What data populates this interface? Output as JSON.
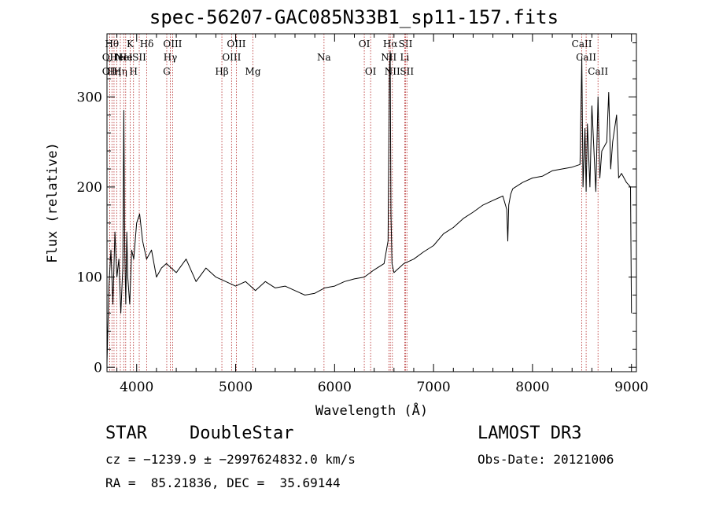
{
  "header": {
    "title": "spec-56207-GAC085N33B1_sp11-157.fits"
  },
  "info": {
    "class": "STAR",
    "subclass": "DoubleStar",
    "survey": "LAMOST DR3",
    "cz": "cz = −1239.9 ± −2997624832.0 km/s",
    "obs_date": "Obs-Date: 20121006",
    "coords": "RA =  85.21836, DEC =  35.69144"
  },
  "chart_data": {
    "type": "line",
    "title": "spec-56207-GAC085N33B1_sp11-157.fits",
    "xlabel": "Wavelength (Å)",
    "ylabel": "Flux (relative)",
    "xlim": [
      3700,
      9050
    ],
    "ylim": [
      -5,
      370
    ],
    "xticks": [
      4000,
      5000,
      6000,
      7000,
      8000,
      9000
    ],
    "yticks": [
      0,
      100,
      200,
      300
    ],
    "grid": false,
    "series": [
      {
        "color": "#000000",
        "x": [
          3700,
          3720,
          3740,
          3760,
          3780,
          3800,
          3820,
          3840,
          3860,
          3870,
          3880,
          3890,
          3900,
          3910,
          3930,
          3950,
          3970,
          4000,
          4030,
          4060,
          4100,
          4150,
          4200,
          4250,
          4300,
          4400,
          4500,
          4600,
          4700,
          4800,
          4900,
          5000,
          5100,
          5200,
          5300,
          5400,
          5500,
          5600,
          5700,
          5800,
          5900,
          6000,
          6100,
          6200,
          6300,
          6400,
          6500,
          6540,
          6555,
          6562,
          6570,
          6580,
          6600,
          6650,
          6700,
          6800,
          6900,
          7000,
          7100,
          7200,
          7300,
          7400,
          7500,
          7600,
          7700,
          7740,
          7750,
          7760,
          7780,
          7800,
          7900,
          8000,
          8100,
          8200,
          8300,
          8400,
          8480,
          8498,
          8510,
          8530,
          8542,
          8555,
          8580,
          8600,
          8640,
          8662,
          8680,
          8700,
          8750,
          8770,
          8790,
          8810,
          8850,
          8870,
          8900,
          8950,
          8990,
          9000
        ],
        "values": [
          5,
          90,
          130,
          70,
          150,
          100,
          120,
          60,
          110,
          285,
          130,
          70,
          150,
          100,
          70,
          130,
          120,
          160,
          170,
          140,
          120,
          130,
          100,
          110,
          115,
          105,
          120,
          95,
          110,
          100,
          95,
          90,
          95,
          85,
          95,
          88,
          90,
          85,
          80,
          82,
          88,
          90,
          95,
          98,
          100,
          108,
          115,
          140,
          330,
          350,
          170,
          115,
          105,
          110,
          115,
          120,
          128,
          135,
          148,
          155,
          165,
          172,
          180,
          185,
          190,
          175,
          140,
          180,
          192,
          198,
          205,
          210,
          212,
          218,
          220,
          222,
          225,
          345,
          200,
          265,
          195,
          270,
          200,
          290,
          195,
          300,
          210,
          240,
          250,
          305,
          220,
          250,
          280,
          210,
          215,
          205,
          200,
          60
        ]
      }
    ],
    "line_markers": [
      {
        "wave": 3727,
        "label": "OII",
        "row": 1
      },
      {
        "wave": 3727,
        "label": "OII",
        "row": 2
      },
      {
        "wave": 3750,
        "label": "Hθ",
        "row": 0
      },
      {
        "wave": 3771,
        "label": "Hη",
        "row": 2
      },
      {
        "wave": 3798,
        "label": "He",
        "row": 1
      },
      {
        "wave": 3835,
        "label": "Hη",
        "row": 2
      },
      {
        "wave": 3869,
        "label": "NeI",
        "row": 1
      },
      {
        "wave": 3889,
        "label": "He",
        "row": 1
      },
      {
        "wave": 3934,
        "label": "K",
        "row": 0
      },
      {
        "wave": 3968,
        "label": "H",
        "row": 2
      },
      {
        "wave": 4026,
        "label": "SII",
        "row": 1
      },
      {
        "wave": 4102,
        "label": "Hδ",
        "row": 0
      },
      {
        "wave": 4304,
        "label": "G",
        "row": 2
      },
      {
        "wave": 4340,
        "label": "Hγ",
        "row": 1
      },
      {
        "wave": 4363,
        "label": "OIII",
        "row": 0
      },
      {
        "wave": 4861,
        "label": "Hβ",
        "row": 2
      },
      {
        "wave": 4959,
        "label": "OIII",
        "row": 1
      },
      {
        "wave": 5007,
        "label": "OIII",
        "row": 0
      },
      {
        "wave": 5175,
        "label": "Mg",
        "row": 2
      },
      {
        "wave": 5893,
        "label": "Na",
        "row": 1
      },
      {
        "wave": 6300,
        "label": "OI",
        "row": 0
      },
      {
        "wave": 6364,
        "label": "OI",
        "row": 2
      },
      {
        "wave": 6548,
        "label": "NII",
        "row": 1
      },
      {
        "wave": 6563,
        "label": "Hα",
        "row": 0
      },
      {
        "wave": 6584,
        "label": "NII",
        "row": 2
      },
      {
        "wave": 6708,
        "label": "Li",
        "row": 1
      },
      {
        "wave": 6717,
        "label": "SII",
        "row": 0
      },
      {
        "wave": 6731,
        "label": "SII",
        "row": 2
      },
      {
        "wave": 8498,
        "label": "CaII",
        "row": 0
      },
      {
        "wave": 8542,
        "label": "CaII",
        "row": 1
      },
      {
        "wave": 8662,
        "label": "CaII",
        "row": 2
      }
    ]
  }
}
